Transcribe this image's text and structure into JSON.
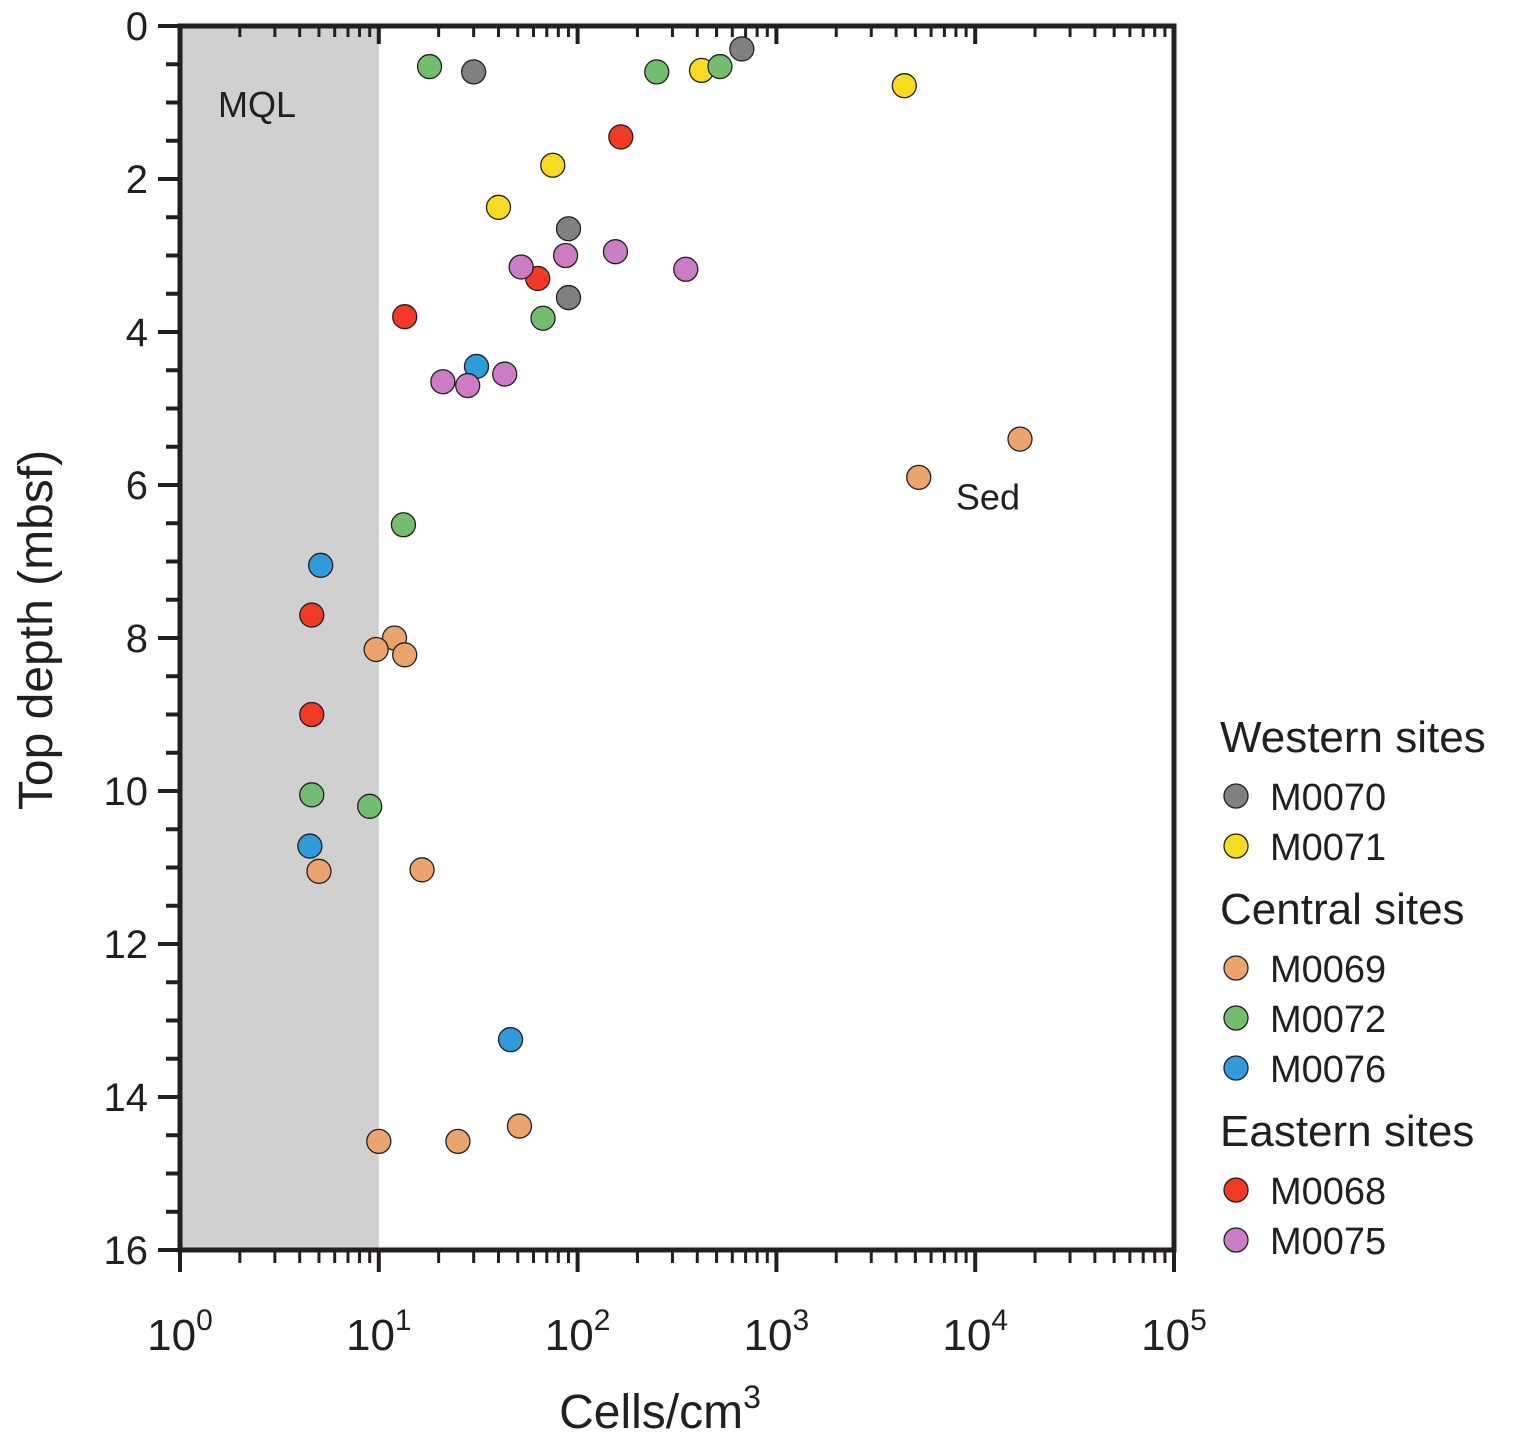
{
  "chart_data": {
    "type": "scatter",
    "x_scale": "log",
    "xlim": [
      1,
      100000
    ],
    "ylim": [
      0,
      16
    ],
    "y_inverted": true,
    "xlabel": "Cells/cm",
    "xlabel_superscript": "3",
    "ylabel": "Top depth (mbsf)",
    "x_ticks": [
      {
        "base": "10",
        "exp": "0",
        "value": 1
      },
      {
        "base": "10",
        "exp": "1",
        "value": 10
      },
      {
        "base": "10",
        "exp": "2",
        "value": 100
      },
      {
        "base": "10",
        "exp": "3",
        "value": 1000
      },
      {
        "base": "10",
        "exp": "4",
        "value": 10000
      },
      {
        "base": "10",
        "exp": "5",
        "value": 100000
      }
    ],
    "y_ticks": [
      "0",
      "2",
      "4",
      "6",
      "8",
      "10",
      "12",
      "14",
      "16"
    ],
    "shaded_region": {
      "label": "MQL",
      "x": [
        1,
        10
      ],
      "color": "#cfd0cf"
    },
    "annotations": [
      {
        "text": "Sed",
        "x": 8000,
        "y": 6.15
      }
    ],
    "legend": {
      "position": "right",
      "groups": [
        {
          "title": "Western sites",
          "entries": [
            "M0070",
            "M0071"
          ]
        },
        {
          "title": "Central sites",
          "entries": [
            "M0069",
            "M0072",
            "M0076"
          ]
        },
        {
          "title": "Eastern sites",
          "entries": [
            "M0068",
            "M0075"
          ]
        }
      ]
    },
    "series": [
      {
        "name": "M0070",
        "color": "#808080",
        "points": [
          [
            30,
            0.6
          ],
          [
            670,
            0.3
          ],
          [
            90,
            2.65
          ],
          [
            90,
            3.55
          ]
        ]
      },
      {
        "name": "M0071",
        "color": "#f8da22",
        "points": [
          [
            420,
            0.58
          ],
          [
            4400,
            0.78
          ],
          [
            75,
            1.82
          ],
          [
            40,
            2.37
          ]
        ]
      },
      {
        "name": "M0069",
        "color": "#eca46f",
        "points": [
          [
            16800,
            5.4
          ],
          [
            5200,
            5.9
          ],
          [
            12,
            8.0
          ],
          [
            9.7,
            8.15
          ],
          [
            13.5,
            8.22
          ],
          [
            5,
            11.05
          ],
          [
            16.5,
            11.03
          ],
          [
            51,
            14.38
          ],
          [
            25,
            14.58
          ],
          [
            10,
            14.58
          ]
        ]
      },
      {
        "name": "M0072",
        "color": "#72be6e",
        "points": [
          [
            18,
            0.53
          ],
          [
            250,
            0.6
          ],
          [
            520,
            0.53
          ],
          [
            67,
            3.82
          ],
          [
            13.3,
            6.52
          ],
          [
            4.6,
            10.05
          ],
          [
            9,
            10.2
          ]
        ]
      },
      {
        "name": "M0076",
        "color": "#2f9bdc",
        "points": [
          [
            31,
            4.45
          ],
          [
            5.1,
            7.05
          ],
          [
            4.5,
            10.72
          ],
          [
            46,
            13.25
          ]
        ]
      },
      {
        "name": "M0068",
        "color": "#f03a25",
        "points": [
          [
            165,
            1.45
          ],
          [
            63,
            3.3
          ],
          [
            13.5,
            3.8
          ],
          [
            4.6,
            7.7
          ],
          [
            4.6,
            9.0
          ]
        ]
      },
      {
        "name": "M0075",
        "color": "#cc7bc5",
        "points": [
          [
            52,
            3.15
          ],
          [
            87,
            3.0
          ],
          [
            155,
            2.95
          ],
          [
            350,
            3.18
          ],
          [
            21,
            4.65
          ],
          [
            28,
            4.7
          ],
          [
            43,
            4.55
          ]
        ]
      }
    ]
  }
}
